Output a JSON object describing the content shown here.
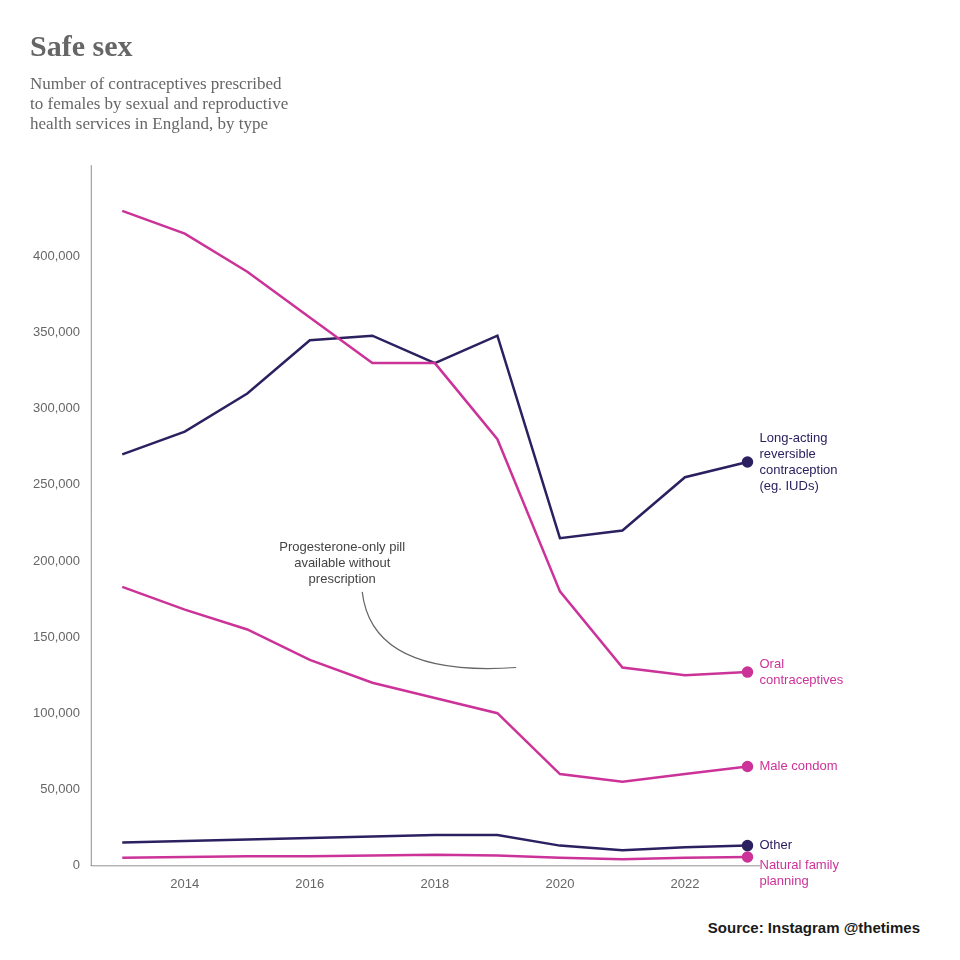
{
  "chart_data": {
    "type": "line",
    "title": "Safe sex",
    "subtitle": "Number of contraceptives prescribed\nto females by sexual and reproductive\nhealth services in England, by type",
    "source": "Source: Instagram @thetimes",
    "x": [
      2013,
      2014,
      2015,
      2016,
      2017,
      2018,
      2019,
      2020,
      2021,
      2022,
      2023
    ],
    "series": [
      {
        "name": "Oral\ncontraceptives",
        "color": "#cc3399",
        "values": [
          430000,
          415000,
          390000,
          360000,
          330000,
          330000,
          280000,
          180000,
          130000,
          125000,
          127000
        ]
      },
      {
        "name": "Long-acting\nreversible\ncontraception\n(eg. IUDs)",
        "color": "#2d2060",
        "values": [
          270000,
          285000,
          310000,
          345000,
          348000,
          330000,
          348000,
          215000,
          220000,
          255000,
          265000
        ]
      },
      {
        "name": "Male condom",
        "color": "#cc3399",
        "values": [
          183000,
          168000,
          155000,
          135000,
          120000,
          110000,
          100000,
          60000,
          55000,
          60000,
          65000
        ]
      },
      {
        "name": "Other",
        "color": "#2d2060",
        "values": [
          15000,
          16000,
          17000,
          18000,
          19000,
          20000,
          20000,
          13000,
          10000,
          12000,
          13000
        ]
      },
      {
        "name": "Natural family\nplanning",
        "color": "#cc3399",
        "values": [
          5000,
          5500,
          6000,
          6000,
          6500,
          7000,
          6500,
          5000,
          4000,
          5000,
          5500
        ]
      }
    ],
    "xlim": [
      2012.5,
      2023.2
    ],
    "xticks": [
      2014,
      2016,
      2018,
      2020,
      2022
    ],
    "ylim": [
      0,
      460000
    ],
    "yticks": [
      0,
      {
        "value": 50000,
        "label": "50,000"
      },
      {
        "value": 100000,
        "label": "100,000"
      },
      {
        "value": 150000,
        "label": "150,000"
      },
      {
        "value": 200000,
        "label": "200,000"
      },
      {
        "value": 250000,
        "label": "250,000"
      },
      {
        "value": 300000,
        "label": "300,000"
      },
      {
        "value": 350000,
        "label": "350,000"
      },
      {
        "value": 400000,
        "label": "400,000"
      }
    ],
    "grid": false,
    "annotations": [
      {
        "text": "Progesterone-only pill\navailable without\nprescription",
        "x": 2019.3,
        "y": 130000
      }
    ]
  }
}
